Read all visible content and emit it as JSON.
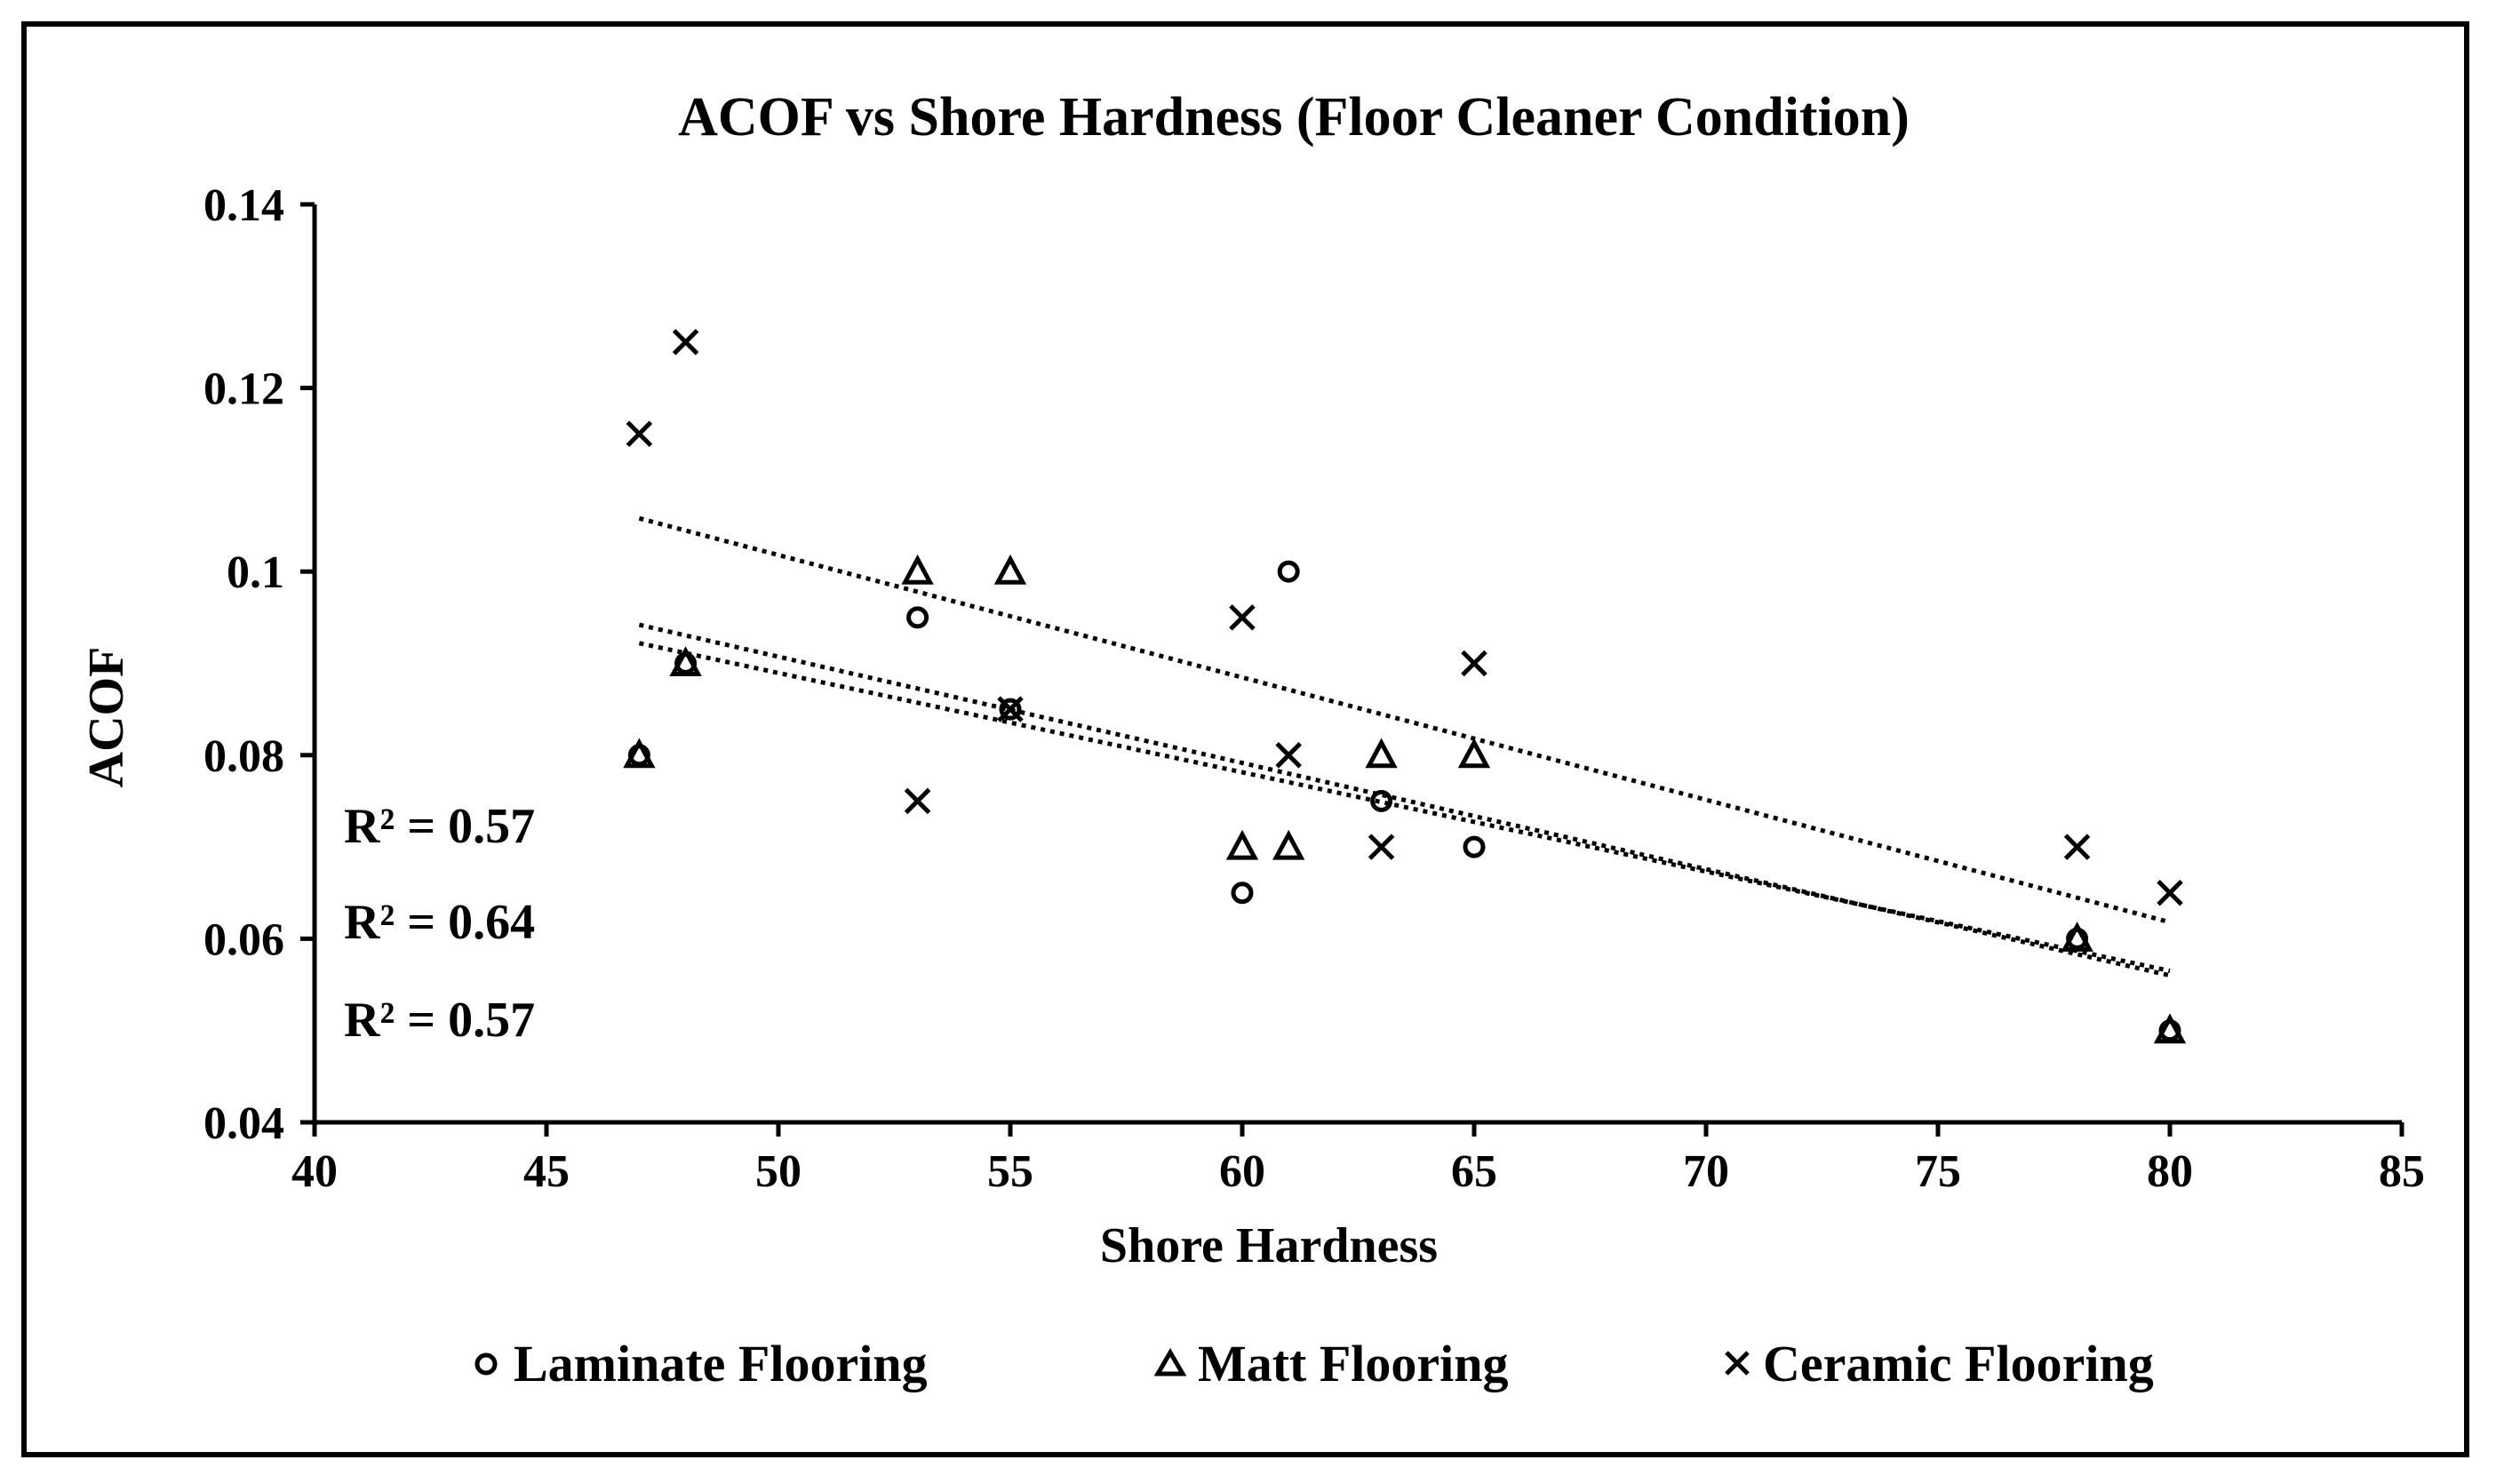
{
  "chart_data": {
    "type": "scatter",
    "title": "ACOF vs Shore Hardness (Floor Cleaner Condition)",
    "xlabel": "Shore Hardness",
    "ylabel": "ACOF",
    "xlim": [
      40,
      85
    ],
    "ylim": [
      0.04,
      0.14
    ],
    "xticks": [
      40,
      45,
      50,
      55,
      60,
      65,
      70,
      75,
      80,
      85
    ],
    "yticks": [
      0.04,
      0.06,
      0.08,
      0.1,
      0.12,
      0.14
    ],
    "ytick_labels": [
      "0.04",
      "0.06",
      "0.08",
      "0.1",
      "0.12",
      "0.14"
    ],
    "grid": false,
    "legend_position": "bottom",
    "series": [
      {
        "name": "Laminate Flooring",
        "marker": "circle",
        "x": [
          47,
          48,
          53,
          55,
          60,
          61,
          63,
          65,
          78,
          80
        ],
        "y": [
          0.08,
          0.09,
          0.095,
          0.085,
          0.065,
          0.1,
          0.075,
          0.07,
          0.06,
          0.05
        ],
        "trendline": {
          "x": [
            47,
            80
          ],
          "y": [
            0.0942,
            0.056
          ]
        }
      },
      {
        "name": "Matt Flooring",
        "marker": "triangle",
        "x": [
          47,
          48,
          53,
          55,
          60,
          61,
          63,
          65,
          78,
          80
        ],
        "y": [
          0.08,
          0.09,
          0.1,
          0.1,
          0.07,
          0.07,
          0.08,
          0.08,
          0.06,
          0.05
        ],
        "trendline": {
          "x": [
            47,
            80
          ],
          "y": [
            0.0922,
            0.0565
          ]
        }
      },
      {
        "name": "Ceramic Flooring",
        "marker": "x",
        "x": [
          47,
          48,
          53,
          55,
          60,
          61,
          63,
          65,
          78,
          80
        ],
        "y": [
          0.115,
          0.125,
          0.075,
          0.085,
          0.095,
          0.08,
          0.07,
          0.09,
          0.07,
          0.065
        ],
        "trendline": {
          "x": [
            47,
            80
          ],
          "y": [
            0.1058,
            0.0618
          ]
        }
      }
    ],
    "annotations": [
      "R² = 0.57",
      "R² = 0.64",
      "R² = 0.57"
    ]
  }
}
